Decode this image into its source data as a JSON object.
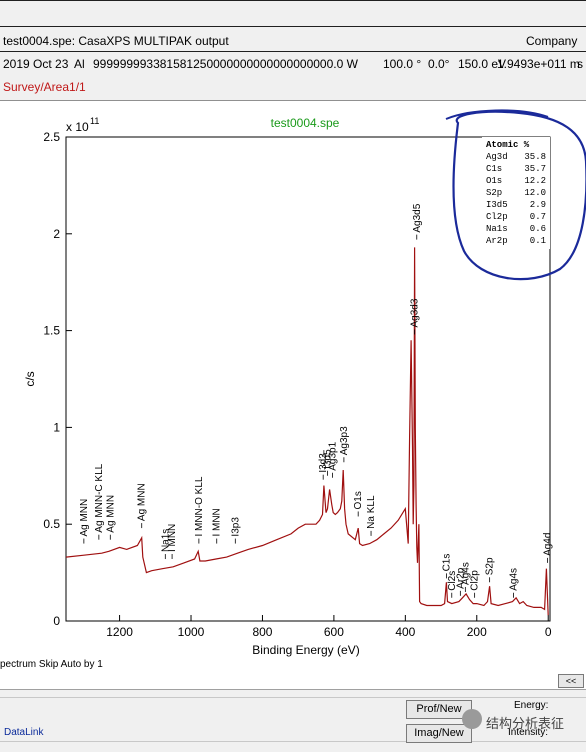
{
  "header": {
    "filename_line": "test0004.spe: CasaXPS MULTIPAK output",
    "company": "Company",
    "info_date": "2019 Oct 23",
    "info_source": "Al",
    "info_number": "999999993381581250000000000000000000.0 W",
    "info_angle1": "100.0 °",
    "info_angle2": "0.0°",
    "info_energy": "150.0 eV",
    "info_energy2": "1.9493e+011 m",
    "info_tail": "s",
    "region": "Survey/Area1/1"
  },
  "plot": {
    "title": "test0004.spe",
    "exponent": "x 10",
    "exponent_power": "11",
    "status": "pectrum Skip Auto by 1",
    "nav_button": "<<"
  },
  "table": {
    "header": "Atomic %",
    "rows": [
      {
        "name": "Ag3d",
        "value": "35.8"
      },
      {
        "name": "C1s",
        "value": "35.7"
      },
      {
        "name": "O1s",
        "value": "12.2"
      },
      {
        "name": "S2p",
        "value": "12.0"
      },
      {
        "name": "I3d5",
        "value": "2.9"
      },
      {
        "name": "Cl2p",
        "value": "0.7"
      },
      {
        "name": "Na1s",
        "value": "0.6"
      },
      {
        "name": "Ar2p",
        "value": "0.1"
      }
    ]
  },
  "bottom": {
    "datalink": "DataLink",
    "prof_button": "Prof/New",
    "imag_button": "Imag/New",
    "energy_label": "Energy:",
    "intensity_label": "Intensity:",
    "watermark": "结构分析表征"
  },
  "chart_data": {
    "type": "line",
    "title": "test0004.spe",
    "xlabel": "Binding Energy (eV)",
    "ylabel": "c/s",
    "xlim": [
      1350,
      -5
    ],
    "ylim": [
      0,
      2.5
    ],
    "y_multiplier": "x 10^11",
    "xticks": [
      1200,
      1000,
      800,
      600,
      400,
      200,
      0
    ],
    "yticks": [
      0,
      0.5,
      1,
      1.5,
      2,
      2.5
    ],
    "line_color": "#a01010",
    "series": [
      {
        "values_note": "",
        "x": [
          1350,
          1300,
          1250,
          1230,
          1200,
          1180,
          1150,
          1138,
          1135,
          1125,
          1110,
          1080,
          1050,
          1020,
          990,
          980,
          975,
          960,
          930,
          900,
          870,
          840,
          800,
          760,
          720,
          700,
          680,
          650,
          640,
          632,
          628,
          622,
          618,
          612,
          606,
          602,
          596,
          590,
          582,
          578,
          574,
          570,
          566,
          560,
          540,
          532,
          528,
          520,
          500,
          480,
          460,
          440,
          420,
          400,
          392,
          388,
          384,
          380,
          378,
          376,
          374,
          372,
          370,
          368,
          366,
          364,
          362,
          360,
          356,
          340,
          320,
          300,
          290,
          285,
          282,
          270,
          250,
          240,
          230,
          220,
          210,
          200,
          180,
          170,
          164,
          160,
          140,
          120,
          100,
          90,
          80,
          70,
          60,
          40,
          20,
          10,
          5,
          0
        ],
        "y": [
          0.33,
          0.34,
          0.35,
          0.36,
          0.38,
          0.37,
          0.39,
          0.43,
          0.33,
          0.25,
          0.26,
          0.27,
          0.28,
          0.3,
          0.32,
          0.36,
          0.31,
          0.31,
          0.32,
          0.33,
          0.35,
          0.37,
          0.39,
          0.42,
          0.45,
          0.48,
          0.5,
          0.5,
          0.52,
          0.55,
          0.7,
          0.56,
          0.58,
          0.68,
          0.6,
          0.56,
          0.55,
          0.56,
          0.58,
          0.62,
          0.78,
          0.58,
          0.5,
          0.45,
          0.42,
          0.48,
          0.4,
          0.39,
          0.4,
          0.42,
          0.45,
          0.48,
          0.52,
          0.58,
          0.4,
          0.95,
          1.45,
          0.9,
          0.5,
          0.7,
          1.93,
          1.0,
          0.6,
          0.38,
          0.3,
          0.4,
          0.5,
          0.1,
          0.09,
          0.08,
          0.08,
          0.08,
          0.09,
          0.2,
          0.1,
          0.09,
          0.1,
          0.12,
          0.14,
          0.11,
          0.09,
          0.09,
          0.08,
          0.1,
          0.18,
          0.09,
          0.08,
          0.09,
          0.1,
          0.12,
          0.09,
          0.1,
          0.08,
          0.07,
          0.07,
          0.06,
          0.27,
          0.03
        ]
      }
    ],
    "peak_labels": [
      {
        "text": "Ag MNN",
        "x": 1300,
        "y": 0.4
      },
      {
        "text": "Ag MNN-C KLL",
        "x": 1258,
        "y": 0.42
      },
      {
        "text": "Ag MNN",
        "x": 1226,
        "y": 0.42
      },
      {
        "text": "Ag MNN",
        "x": 1138,
        "y": 0.48
      },
      {
        "text": "Na1s",
        "x": 1072,
        "y": 0.32
      },
      {
        "text": "I MNN",
        "x": 1053,
        "y": 0.32
      },
      {
        "text": "I MNN-O KLL",
        "x": 978,
        "y": 0.4
      },
      {
        "text": "I MNN",
        "x": 928,
        "y": 0.4
      },
      {
        "text": "I3p3",
        "x": 876,
        "y": 0.4
      },
      {
        "text": "I3d3",
        "x": 630,
        "y": 0.73
      },
      {
        "text": "I3d5",
        "x": 618,
        "y": 0.75
      },
      {
        "text": "Ag3p1",
        "x": 604,
        "y": 0.74
      },
      {
        "text": "Ag3p3",
        "x": 572,
        "y": 0.82
      },
      {
        "text": "O1s",
        "x": 532,
        "y": 0.54
      },
      {
        "text": "Na KLL",
        "x": 496,
        "y": 0.44
      },
      {
        "text": "Ag3d3",
        "x": 374,
        "y": 1.48
      },
      {
        "text": "Ag3d5",
        "x": 368,
        "y": 1.97
      },
      {
        "text": "C1s",
        "x": 285,
        "y": 0.22
      },
      {
        "text": "Cl2s",
        "x": 270,
        "y": 0.12
      },
      {
        "text": "Ar2p",
        "x": 246,
        "y": 0.13
      },
      {
        "text": "Ag4s",
        "x": 232,
        "y": 0.15
      },
      {
        "text": "Cl2p",
        "x": 206,
        "y": 0.12
      },
      {
        "text": "S2p",
        "x": 164,
        "y": 0.2
      },
      {
        "text": "Ag4s",
        "x": 97,
        "y": 0.12
      },
      {
        "text": "Ag4d",
        "x": 2,
        "y": 0.3
      }
    ]
  }
}
